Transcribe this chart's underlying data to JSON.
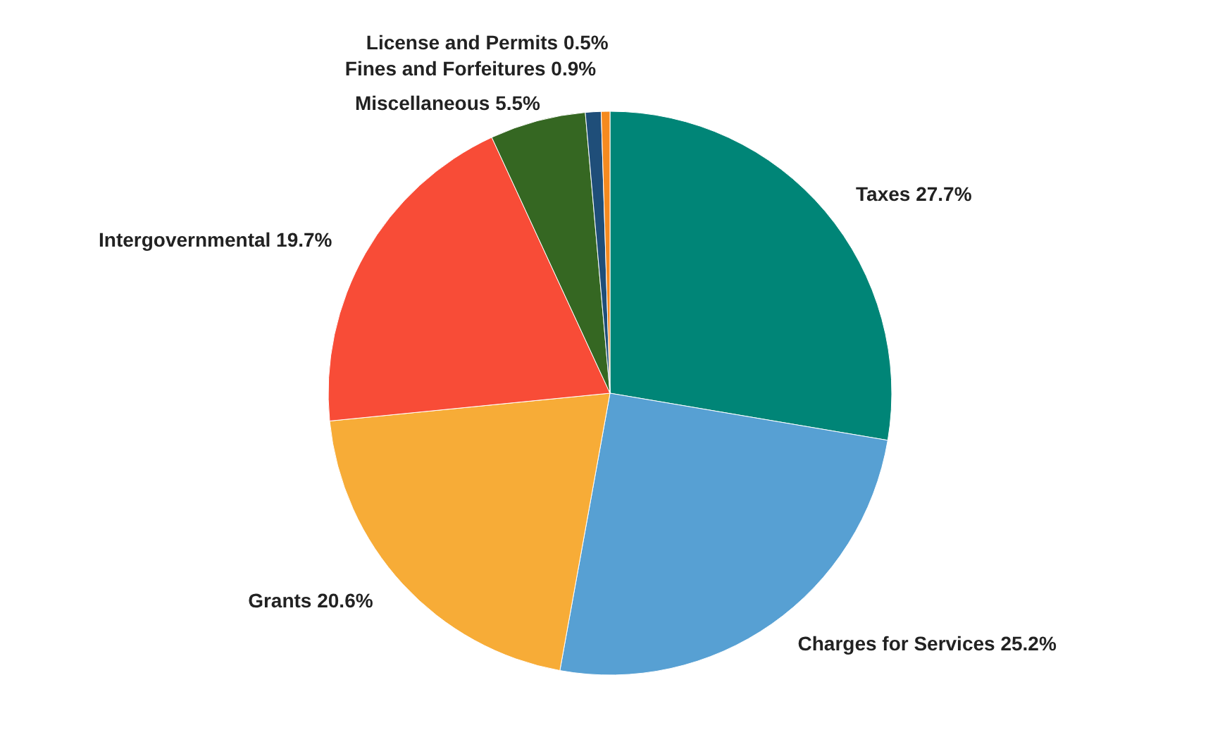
{
  "chart_data": {
    "type": "pie",
    "categories": [
      "Taxes",
      "Charges for Services",
      "Grants",
      "Intergovernmental",
      "Miscellaneous",
      "Fines and Forfeitures",
      "License and Permits"
    ],
    "values": [
      27.7,
      25.2,
      20.6,
      19.7,
      5.5,
      0.9,
      0.5
    ],
    "value_labels": [
      "27.7%",
      "25.2%",
      "20.6%",
      "19.7%",
      "5.5%",
      "0.9%",
      "0.5%"
    ],
    "colors": [
      "#008577",
      "#57a0d3",
      "#f7ac37",
      "#f84c37",
      "#356722",
      "#1f4e79",
      "#f58a1f"
    ],
    "legend": false
  }
}
